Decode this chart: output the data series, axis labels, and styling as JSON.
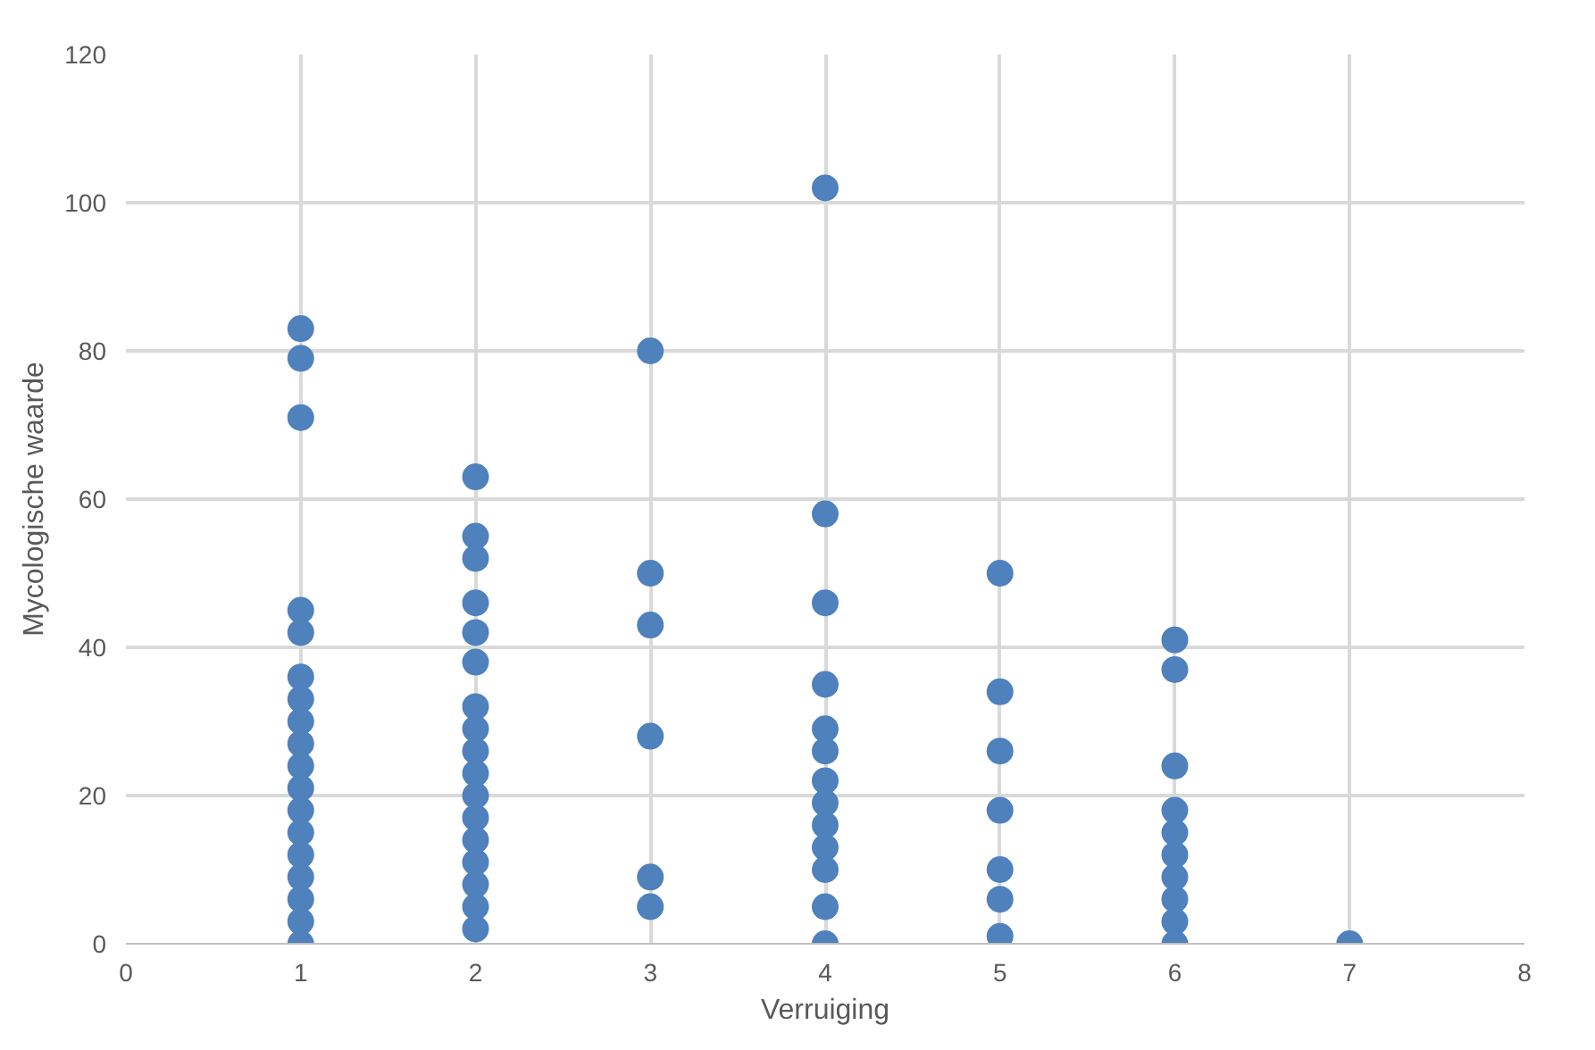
{
  "chart_data": {
    "type": "scatter",
    "xlabel": "Verruiging",
    "ylabel": "Mycologische waarde",
    "xlim": [
      0,
      8
    ],
    "ylim": [
      0,
      120
    ],
    "xticks": [
      0,
      1,
      2,
      3,
      4,
      5,
      6,
      7,
      8
    ],
    "yticks": [
      0,
      20,
      40,
      60,
      80,
      100,
      120
    ],
    "grid": true,
    "marker": "circle",
    "series": [
      {
        "color": "#4f81bd",
        "x": [
          1,
          1,
          1,
          1,
          1,
          1,
          1,
          1,
          1,
          1,
          1,
          1,
          1,
          1,
          1,
          1,
          1,
          1,
          2,
          2,
          2,
          2,
          2,
          2,
          2,
          2,
          2,
          2,
          2,
          2,
          2,
          2,
          2,
          2,
          2,
          3,
          3,
          3,
          3,
          3,
          3,
          4,
          4,
          4,
          4,
          4,
          4,
          4,
          4,
          4,
          4,
          4,
          4,
          4,
          5,
          5,
          5,
          5,
          5,
          5,
          5,
          6,
          6,
          6,
          6,
          6,
          6,
          6,
          6,
          6,
          6,
          7
        ],
        "values": [
          83,
          79,
          71,
          45,
          42,
          36,
          33,
          30,
          27,
          24,
          21,
          18,
          15,
          12,
          9,
          6,
          3,
          0,
          63,
          55,
          52,
          46,
          42,
          38,
          32,
          29,
          26,
          23,
          20,
          17,
          14,
          11,
          8,
          5,
          2,
          80,
          50,
          43,
          28,
          9,
          5,
          102,
          58,
          46,
          35,
          29,
          26,
          22,
          19,
          16,
          13,
          10,
          5,
          0,
          50,
          34,
          26,
          18,
          10,
          6,
          1,
          41,
          37,
          24,
          18,
          15,
          12,
          9,
          6,
          3,
          0,
          0
        ]
      }
    ]
  }
}
